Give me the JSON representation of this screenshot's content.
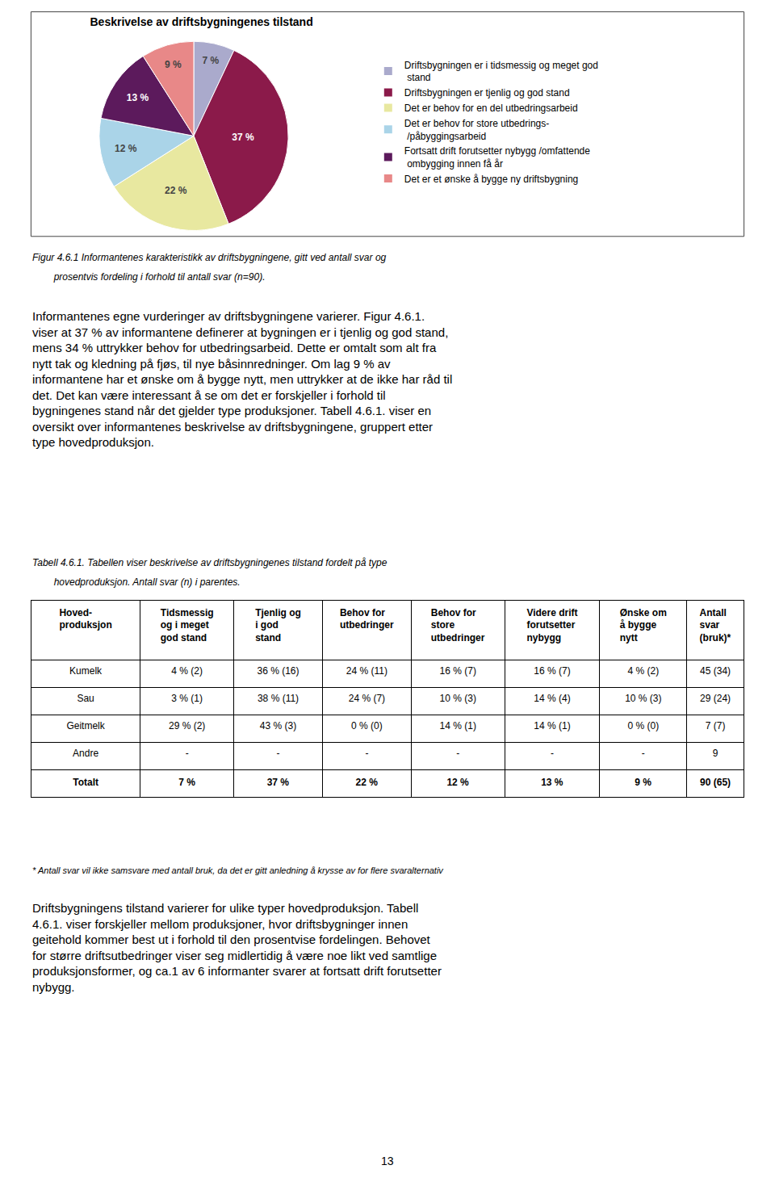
{
  "chart_data": [
    {
      "type": "pie",
      "title": "Beskrivelse av driftsbygningenes tilstand",
      "categories": [
        "Driftsbygningen er i tidsmessig og meget god\n stand",
        "Driftsbygningen er tjenlig og god stand",
        "Det er behov for en del utbedringsarbeid",
        "Det er behov for store utbedrings-\n /påbyggingsarbeid",
        "Fortsatt drift forutsetter nybygg /omfattende\n ombygging innen få år",
        "Det er et ønske å bygge ny driftsbygning"
      ],
      "values": [
        7,
        37,
        22,
        12,
        13,
        9
      ],
      "value_labels": [
        "7 %",
        "37 %",
        "22 %",
        "12 %",
        "13 %",
        "9 %"
      ],
      "colors": [
        "#aaaacc",
        "#8b1a4a",
        "#e8e8a0",
        "#aad4e8",
        "#5c1a5c",
        "#e88888"
      ],
      "data_labels": true,
      "legend": "right",
      "annotations": [
        "Figur 4.6.1 Informantenes karakteristikk av driftsbygningene, gitt ved antall svar og",
        "        prosentvis fordeling i forhold til antall svar (n=90).",
        "Informantenes egne vurderinger av driftsbygningene varierer. Figur 4.6.1.\nviser at 37 % av informantene definerer at bygningen er i tjenlig og god stand,\nmens 34 % uttrykker behov for utbedringsarbeid. Dette er omtalt som alt fra\nnytt tak og kledning på fjøs, til nye båsinnredninger. Om lag 9 % av\ninformantene har et ønske om å bygge nytt, men uttrykker at de ikke har råd til\ndet. Det kan være interessant å se om det er forskjeller i forhold til\nbygningenes stand når det gjelder type produksjoner. Tabell 4.6.1. viser en\noversikt over informantenes beskrivelse av driftsbygningene, gruppert etter\ntype hovedproduksjon."
      ]
    },
    {
      "type": "table",
      "headers": [
        "Hoved-\nproduksjon",
        "Tidsmessig\nog i meget\ngod stand",
        "Tjenlig og\ni god\nstand",
        "Behov for\nutbedringer",
        "Behov for\nstore\nutbedringer",
        "Videre drift\nforutsetter\nnybygg",
        "Ønske om\nå bygge\nnytt",
        "Antall\nsvar\n(bruk)*"
      ],
      "rows": [
        [
          "Kumelk",
          "4 % (2)",
          "36 % (16)",
          "24 % (11)",
          "16 % (7)",
          "16 % (7)",
          "4 % (2)",
          "45 (34)"
        ],
        [
          "Sau",
          "3 % (1)",
          "38 % (11)",
          "24 % (7)",
          "10 % (3)",
          "14 % (4)",
          "10 % (3)",
          "29 (24)"
        ],
        [
          "Geitmelk",
          "29 % (2)",
          "43 % (3)",
          "0 % (0)",
          "14 % (1)",
          "14 % (1)",
          "0 % (0)",
          "7 (7)"
        ],
        [
          "Andre",
          "-",
          "-",
          "-",
          "-",
          "-",
          "-",
          "9"
        ],
        [
          "Totalt",
          "7 %",
          "37 %",
          "22 %",
          "12 %",
          "13 %",
          "9 %",
          "90 (65)"
        ]
      ],
      "annotations": [
        "Tabell 4.6.1. Tabellen viser beskrivelse av driftsbygningenes tilstand fordelt på type",
        "        hovedproduksjon. Antall svar (n) i parentes.",
        "* Antall svar vil ikke samsvare med antall bruk, da det er gitt anledning å krysse av for flere svaralternativ",
        "Driftsbygningens tilstand varierer for ulike typer hovedproduksjon. Tabell\n4.6.1. viser forskjeller mellom produksjoner, hvor driftsbygninger innen\ngeitehold kommer best ut i forhold til den prosentvise fordelingen. Behovet\nfor større driftsutbedringer viser seg midlertidig å være noe likt ved samtlige\nproduksjonsformer, og ca.1 av 6 informanter svarer at fortsatt drift forutsetter\nnybygg.",
        "13"
      ]
    }
  ]
}
